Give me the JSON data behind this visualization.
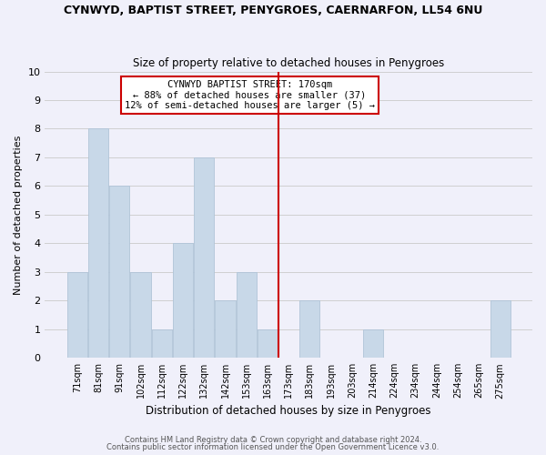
{
  "title": "CYNWYD, BAPTIST STREET, PENYGROES, CAERNARFON, LL54 6NU",
  "subtitle": "Size of property relative to detached houses in Penygroes",
  "xlabel": "Distribution of detached houses by size in Penygroes",
  "ylabel": "Number of detached properties",
  "footer1": "Contains HM Land Registry data © Crown copyright and database right 2024.",
  "footer2": "Contains public sector information licensed under the Open Government Licence v3.0.",
  "bar_labels": [
    "71sqm",
    "81sqm",
    "91sqm",
    "102sqm",
    "112sqm",
    "122sqm",
    "132sqm",
    "142sqm",
    "153sqm",
    "163sqm",
    "173sqm",
    "183sqm",
    "193sqm",
    "203sqm",
    "214sqm",
    "224sqm",
    "234sqm",
    "244sqm",
    "254sqm",
    "265sqm",
    "275sqm"
  ],
  "bar_values": [
    3,
    8,
    6,
    3,
    1,
    4,
    7,
    2,
    3,
    1,
    0,
    2,
    0,
    0,
    1,
    0,
    0,
    0,
    0,
    0,
    2
  ],
  "bar_color": "#c8d8e8",
  "bar_edgecolor": "#b0c4d8",
  "grid_color": "#d0d0d0",
  "vline_x_index": 10,
  "vline_color": "#cc0000",
  "annotation_title": "CYNWYD BAPTIST STREET: 170sqm",
  "annotation_line1": "← 88% of detached houses are smaller (37)",
  "annotation_line2": "12% of semi-detached houses are larger (5) →",
  "annotation_box_color": "#cc0000",
  "annotation_bg_color": "#ffffff",
  "ylim": [
    0,
    10
  ],
  "yticks": [
    0,
    1,
    2,
    3,
    4,
    5,
    6,
    7,
    8,
    9,
    10
  ],
  "background_color": "#f0f0fa"
}
